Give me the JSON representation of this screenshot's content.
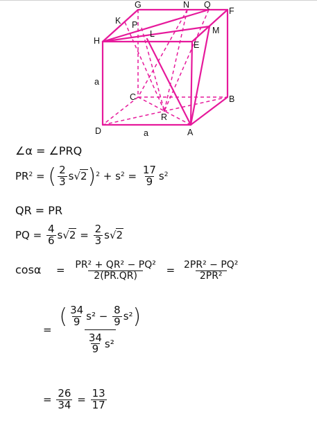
{
  "figure": {
    "colors": {
      "edge": "#e6199b"
    },
    "labels": {
      "G": "G",
      "N": "N",
      "Q": "Q",
      "F": "F",
      "K": "K",
      "P": "P",
      "M": "M",
      "H": "H",
      "L": "L",
      "E": "E",
      "a_side": "a",
      "C": "C",
      "B": "B",
      "R": "R",
      "D": "D",
      "a_bottom": "a",
      "A": "A"
    }
  },
  "solution": {
    "line1": "∠α = ∠PRQ",
    "line2": {
      "lhs": "PR",
      "sq": "2",
      "eq": "=",
      "num": "2",
      "den": "3",
      "s": "s",
      "root": "2",
      "plus": "+ s",
      "eq2": "=",
      "num2": "17",
      "den2": "9",
      "s2": "s"
    },
    "line3": "QR = PR",
    "line4": {
      "lhs": "PQ =",
      "num": "4",
      "den": "6",
      "s": "s",
      "root": "2",
      "eq": "=",
      "num2": "2",
      "den2": "3",
      "s2": "s",
      "root2": "2"
    },
    "line5": {
      "lhs": "cosα",
      "eq": "=",
      "num": "PR² + QR² − PQ²",
      "den": "2(PR.QR)",
      "eq2": "=",
      "num2": "2PR² − PQ²",
      "den2": "2PR²"
    },
    "line6": {
      "eq": "=",
      "a": "34",
      "b": "9",
      "s": "s²",
      "minus": "−",
      "c": "8",
      "d": "9",
      "s2": "s²",
      "e": "34",
      "f": "9",
      "s3": "s²"
    },
    "line7": {
      "eq": "=",
      "num": "26",
      "den": "34",
      "eq2": "=",
      "num2": "13",
      "den2": "17"
    }
  }
}
